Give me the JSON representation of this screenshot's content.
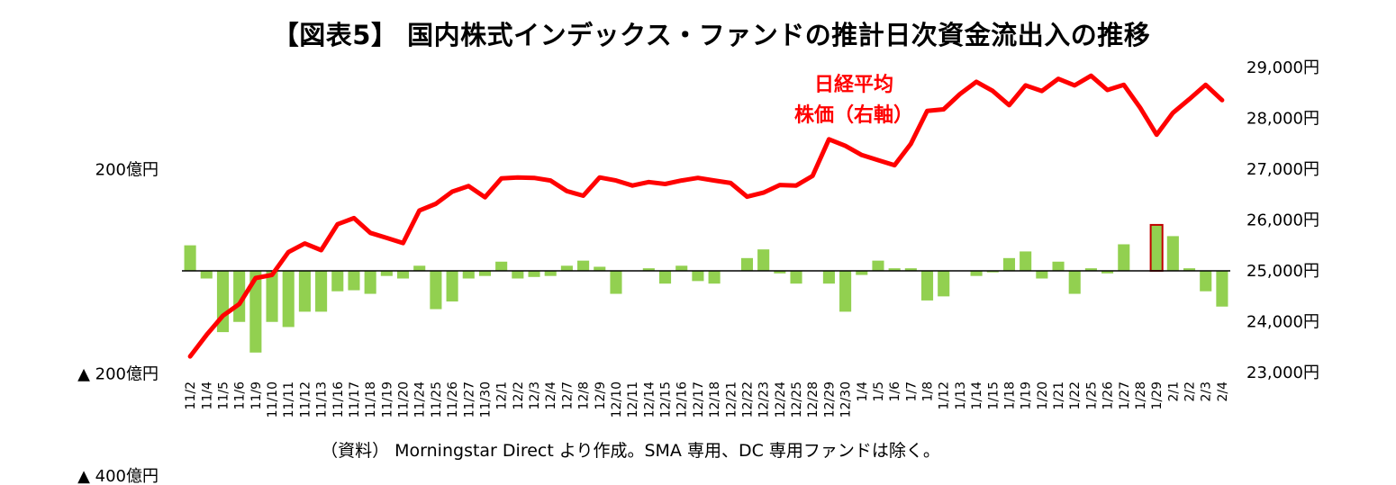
{
  "title": "【図表5】 国内株式インデックス・ファンドの推計日次資金流出入の推移",
  "source_note": "（資料） Morningstar Direct より作成。SMA 専用、DC 専用ファンドは除く。",
  "colors": {
    "bar": "#92d050",
    "highlight_border": "#c00000",
    "line": "#ff0000",
    "zero_line": "#000000"
  },
  "chart_data": {
    "type": "bar+line",
    "left_axis": {
      "ticks": [
        200,
        -200,
        -400
      ],
      "tick_labels": [
        "200億円",
        "▲ 200億円",
        "▲ 400億円"
      ],
      "range": [
        -400,
        400
      ]
    },
    "right_axis": {
      "ticks": [
        23000,
        24000,
        25000,
        26000,
        27000,
        28000,
        29000
      ],
      "tick_labels": [
        "23,000円",
        "24,000円",
        "25,000円",
        "26,000円",
        "27,000円",
        "28,000円",
        "29,000円"
      ],
      "range": [
        23000,
        29000
      ]
    },
    "categories": [
      "11/2",
      "11/4",
      "11/5",
      "11/6",
      "11/9",
      "11/10",
      "11/11",
      "11/12",
      "11/13",
      "11/16",
      "11/17",
      "11/18",
      "11/19",
      "11/20",
      "11/24",
      "11/25",
      "11/26",
      "11/27",
      "11/30",
      "12/1",
      "12/2",
      "12/3",
      "12/4",
      "12/7",
      "12/8",
      "12/9",
      "12/10",
      "12/11",
      "12/14",
      "12/15",
      "12/16",
      "12/17",
      "12/18",
      "12/21",
      "12/22",
      "12/23",
      "12/24",
      "12/25",
      "12/28",
      "12/29",
      "12/30",
      "1/4",
      "1/5",
      "1/6",
      "1/7",
      "1/8",
      "1/12",
      "1/13",
      "1/14",
      "1/15",
      "1/18",
      "1/19",
      "1/20",
      "1/21",
      "1/22",
      "1/25",
      "1/26",
      "1/27",
      "1/28",
      "1/29",
      "2/1",
      "2/2",
      "2/3",
      "2/4"
    ],
    "series": [
      {
        "type": "bar",
        "axis": "left",
        "values": [
          50,
          -15,
          -120,
          -100,
          -160,
          -100,
          -110,
          -80,
          -80,
          -40,
          -38,
          -45,
          -10,
          -15,
          10,
          -75,
          -60,
          -15,
          -10,
          18,
          -15,
          -12,
          -10,
          10,
          20,
          8,
          -45,
          0,
          5,
          -25,
          10,
          -20,
          -25,
          0,
          25,
          42,
          -5,
          -25,
          0,
          -25,
          -80,
          -8,
          20,
          5,
          5,
          -58,
          -50,
          0,
          -10,
          -3,
          25,
          38,
          -15,
          18,
          -45,
          5,
          -5,
          52,
          0,
          90,
          68,
          5,
          -40,
          -70
        ],
        "highlight_index": 59
      },
      {
        "type": "line",
        "axis": "right",
        "name": "日経平均株価（右軸）",
        "values": [
          23300,
          23720,
          24100,
          24330,
          24840,
          24900,
          25350,
          25520,
          25390,
          25900,
          26020,
          25730,
          25630,
          25530,
          26170,
          26300,
          26540,
          26650,
          26430,
          26800,
          26820,
          26810,
          26760,
          26550,
          26460,
          26820,
          26760,
          26660,
          26730,
          26690,
          26760,
          26810,
          26760,
          26710,
          26440,
          26520,
          26670,
          26660,
          26850,
          27570,
          27440,
          27260,
          27160,
          27060,
          27480,
          28130,
          28160,
          28460,
          28700,
          28520,
          28240,
          28630,
          28520,
          28760,
          28630,
          28820,
          28540,
          28640,
          28190,
          27660,
          28090,
          28360,
          28640,
          28340
        ]
      }
    ],
    "annotations": [
      {
        "lines": [
          "日経平均",
          "株価（右軸）"
        ]
      }
    ]
  }
}
